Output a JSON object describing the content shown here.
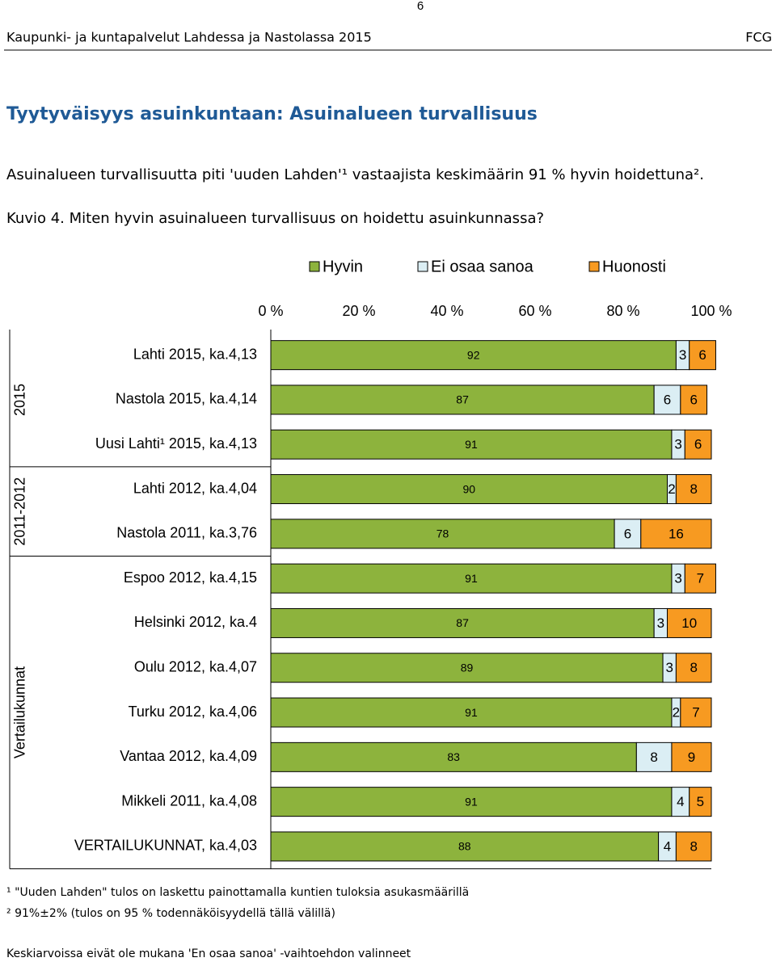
{
  "page_number": "6",
  "header": {
    "left": "Kaupunki- ja kuntapalvelut Lahdessa ja Nastolassa 2015",
    "right": "FCG"
  },
  "title": "Tyytyväisyys asuinkuntaan: Asuinalueen turvallisuus",
  "paragraph": "Asuinalueen turvallisuutta piti 'uuden Lahden'¹ vastaajista keskimäärin 91 % hyvin hoidettuna².",
  "caption": "Kuvio 4. Miten hyvin asuinalueen turvallisuus on hoidettu asuinkunnassa?",
  "chart_data": {
    "type": "bar",
    "orientation": "horizontal",
    "stacked": true,
    "groups": [
      {
        "label": "2015",
        "categories": [
          "Lahti 2015, ka.4,13",
          "Nastola 2015, ka.4,14",
          "Uusi Lahti¹ 2015, ka.4,13"
        ]
      },
      {
        "label": "2011-2012",
        "categories": [
          "Lahti 2012, ka.4,04",
          "Nastola 2011, ka.3,76"
        ]
      },
      {
        "label": "Vertailukunnat",
        "categories": [
          "Espoo 2012, ka.4,15",
          "Helsinki 2012, ka.4",
          "Oulu 2012, ka.4,07",
          "Turku 2012, ka.4,06",
          "Vantaa 2012, ka.4,09",
          "Mikkeli 2011, ka.4,08",
          "VERTAILUKUNNAT, ka.4,03"
        ]
      }
    ],
    "series": [
      {
        "name": "Hyvin",
        "color": "#8db33d",
        "values": [
          92,
          87,
          91,
          90,
          78,
          91,
          87,
          89,
          91,
          83,
          91,
          88
        ]
      },
      {
        "name": "Ei osaa sanoa",
        "color": "#dbeef4",
        "values": [
          3,
          6,
          3,
          2,
          6,
          3,
          3,
          3,
          2,
          8,
          4,
          4
        ]
      },
      {
        "name": "Huonosti",
        "color": "#f79a21",
        "values": [
          6,
          6,
          6,
          8,
          16,
          7,
          10,
          8,
          7,
          9,
          5,
          8
        ]
      }
    ],
    "xlim": [
      0,
      100
    ],
    "xticks": [
      {
        "value": 0,
        "label": "0 %"
      },
      {
        "value": 20,
        "label": "20 %"
      },
      {
        "value": 40,
        "label": "40 %"
      },
      {
        "value": 60,
        "label": "60 %"
      },
      {
        "value": 80,
        "label": "80 %"
      },
      {
        "value": 100,
        "label": "100 %"
      }
    ],
    "legend": "top"
  },
  "footnotes": [
    "¹ \"Uuden Lahden\" tulos on laskettu painottamalla kuntien tuloksia asukasmäärillä",
    "² 91%±2% (tulos on 95 % todennäköisyydellä tällä välillä)",
    "Keskiarvoissa eivät ole mukana 'En osaa sanoa' -vaihtoehdon valinneet"
  ]
}
